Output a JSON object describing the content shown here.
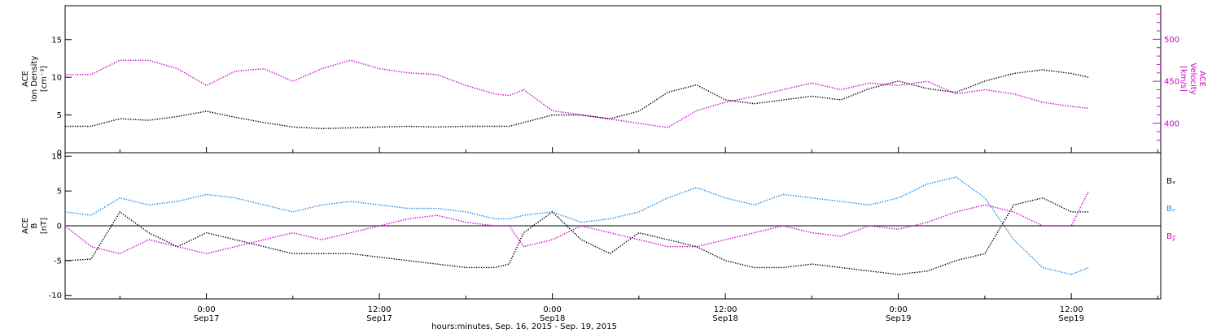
{
  "colors": {
    "axis": "#000000",
    "density": "#000000",
    "velocity": "#cc00cc",
    "bx": "#000000",
    "by": "#1a86e0",
    "bz": "#cc00cc"
  },
  "xaxis": {
    "label": "hours:minutes, Sep. 16, 2015 - Sep. 19, 2015",
    "range_hours": [
      -9.8,
      66.2
    ],
    "ticks": [
      {
        "hour": 0,
        "time": "0:00",
        "day": "Sep17"
      },
      {
        "hour": 12,
        "time": "12:00",
        "day": "Sep17"
      },
      {
        "hour": 24,
        "time": "0:00",
        "day": "Sep18"
      },
      {
        "hour": 36,
        "time": "12:00",
        "day": "Sep18"
      },
      {
        "hour": 48,
        "time": "0:00",
        "day": "Sep19"
      },
      {
        "hour": 60,
        "time": "12:00",
        "day": "Sep19"
      }
    ]
  },
  "chart_data": [
    {
      "type": "scatter",
      "panel": "top",
      "ylabel_left": [
        "ACE",
        "Ion Density",
        "[cm⁻³]"
      ],
      "ylabel_right": [
        "ACE",
        "Velocity",
        "[km/s]"
      ],
      "ylim_left": [
        0,
        19.5
      ],
      "yticks_left": [
        0,
        5,
        10,
        15
      ],
      "ylim_right": [
        365,
        540
      ],
      "yticks_right": [
        400,
        450,
        500
      ],
      "x_hours": [
        -9.8,
        -8,
        -6,
        -4,
        -2,
        0,
        2,
        4,
        6,
        8,
        10,
        12,
        14,
        16,
        18,
        20,
        21,
        22,
        24,
        26,
        28,
        30,
        32,
        34,
        36,
        38,
        40,
        42,
        44,
        46,
        48,
        50,
        52,
        54,
        56,
        58,
        60,
        61.2
      ],
      "series": [
        {
          "key": "density",
          "axis": "left",
          "values": [
            3.5,
            3.5,
            4.5,
            4.3,
            4.8,
            5.5,
            4.7,
            4.0,
            3.4,
            3.2,
            3.3,
            3.4,
            3.5,
            3.4,
            3.5,
            3.5,
            3.5,
            4.0,
            5.0,
            5.0,
            4.5,
            5.5,
            8.0,
            9.0,
            7.0,
            6.5,
            7.0,
            7.5,
            7.0,
            8.5,
            9.5,
            8.5,
            8.0,
            9.5,
            10.5,
            11.0,
            10.5,
            10.0
          ]
        },
        {
          "key": "velocity",
          "axis": "right",
          "values": [
            458,
            458,
            475,
            475,
            465,
            445,
            462,
            465,
            450,
            465,
            475,
            465,
            460,
            458,
            445,
            435,
            433,
            440,
            415,
            410,
            405,
            400,
            395,
            415,
            425,
            432,
            440,
            448,
            440,
            448,
            445,
            450,
            435,
            440,
            435,
            425,
            420,
            418
          ]
        }
      ]
    },
    {
      "type": "scatter",
      "panel": "bottom",
      "ylabel_left": [
        "ACE",
        "B",
        "[nT]"
      ],
      "ylim": [
        -10.5,
        10.5
      ],
      "yticks": [
        -10,
        -5,
        0,
        5,
        10
      ],
      "legend": [
        {
          "key": "bx",
          "text": "Bₓ"
        },
        {
          "key": "by",
          "text": "Bᵧ"
        },
        {
          "key": "bz",
          "text": "B𝓏"
        }
      ],
      "x_hours": [
        -9.8,
        -8,
        -6,
        -4,
        -2,
        0,
        2,
        4,
        6,
        8,
        10,
        12,
        14,
        16,
        18,
        20,
        21,
        22,
        24,
        26,
        28,
        30,
        32,
        34,
        36,
        38,
        40,
        42,
        44,
        46,
        48,
        50,
        52,
        54,
        56,
        58,
        60,
        61.2
      ],
      "series": [
        {
          "key": "bx",
          "values": [
            -5,
            -4.8,
            2,
            -1,
            -3,
            -1,
            -2,
            -3,
            -4,
            -4,
            -4,
            -4.5,
            -5,
            -5.5,
            -6,
            -6,
            -5.5,
            -1,
            2,
            -2,
            -4,
            -1,
            -2,
            -3,
            -5,
            -6,
            -6,
            -5.5,
            -6,
            -6.5,
            -7,
            -6.5,
            -5,
            -4,
            3,
            4,
            2,
            2
          ]
        },
        {
          "key": "by",
          "values": [
            2,
            1.5,
            4,
            3,
            3.5,
            4.5,
            4,
            3,
            2,
            3,
            3.5,
            3,
            2.5,
            2.5,
            2,
            1,
            1,
            1.5,
            2,
            0.5,
            1,
            2,
            4,
            5.5,
            4,
            3,
            4.5,
            4,
            3.5,
            3,
            4,
            6,
            7,
            4,
            -2,
            -6,
            -7,
            -6
          ]
        },
        {
          "key": "bz",
          "values": [
            0,
            -3,
            -4,
            -2,
            -3,
            -4,
            -3,
            -2,
            -1,
            -2,
            -1,
            0,
            1,
            1.5,
            0.5,
            0,
            0,
            -3,
            -2,
            0,
            -1,
            -2,
            -3,
            -3,
            -2,
            -1,
            0,
            -1,
            -1.5,
            0,
            -0.5,
            0.5,
            2,
            3,
            2,
            0,
            0,
            5
          ]
        }
      ]
    }
  ]
}
